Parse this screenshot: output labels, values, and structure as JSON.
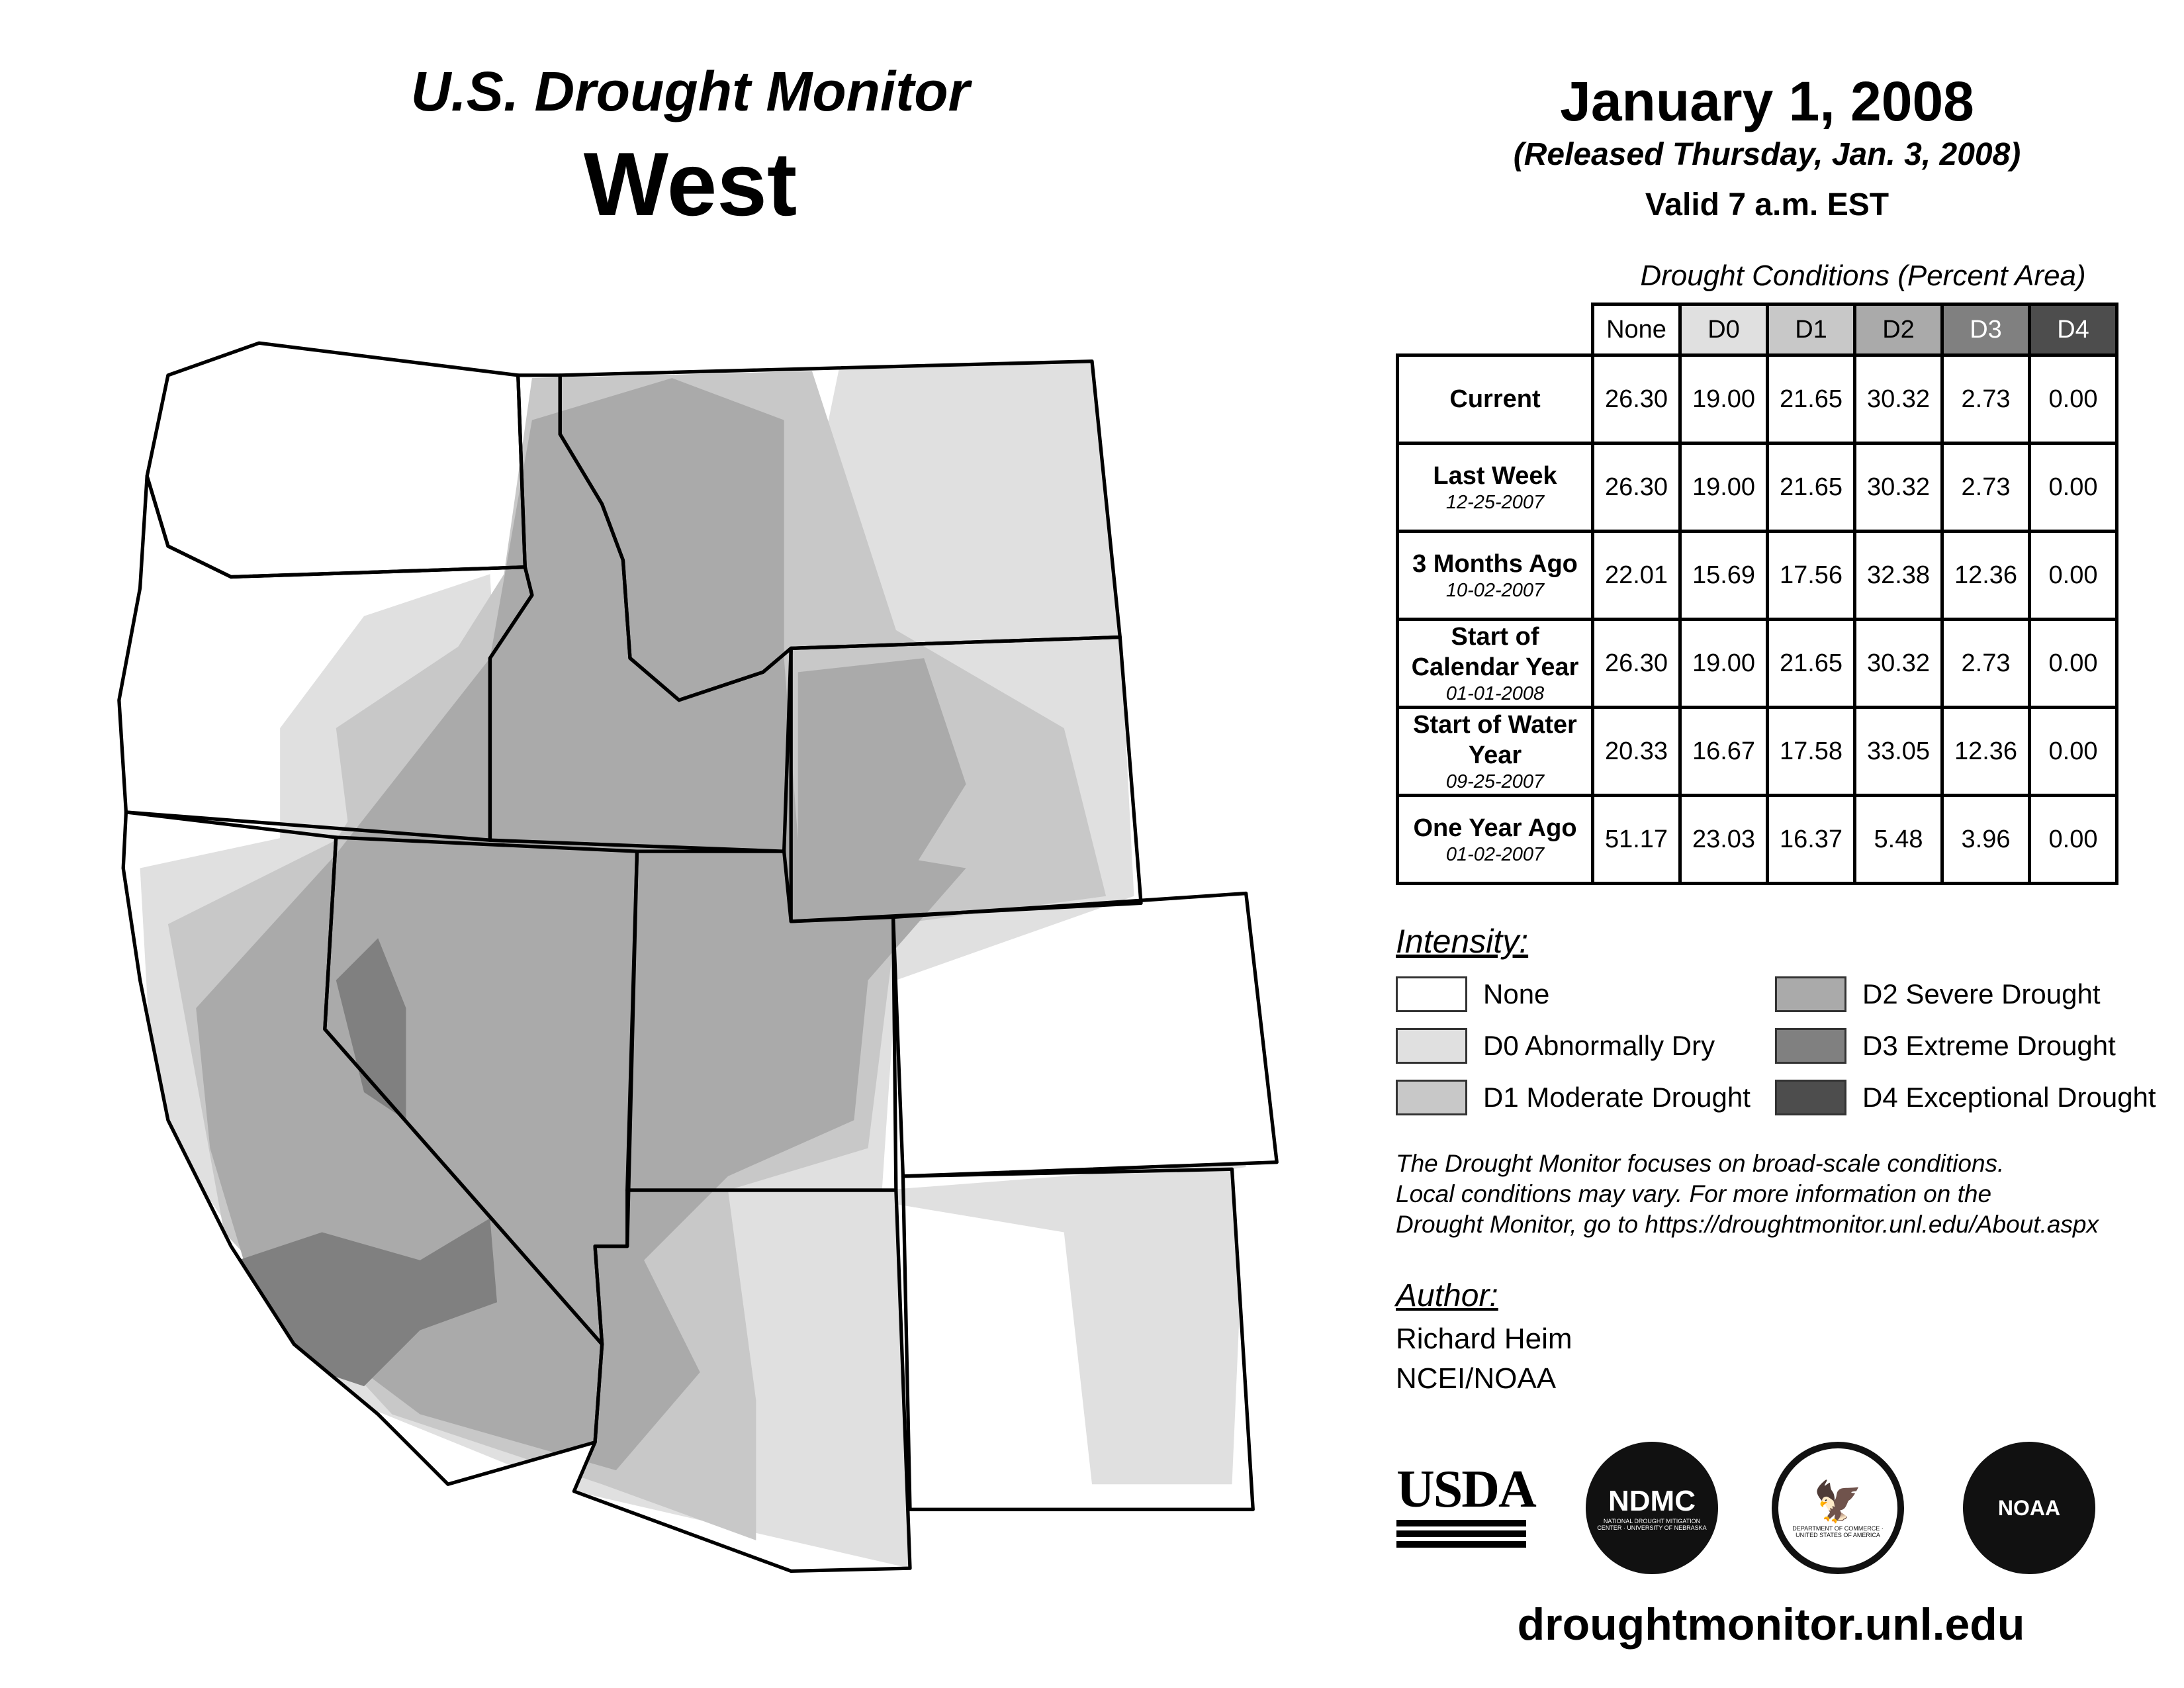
{
  "header": {
    "product": "U.S. Drought Monitor",
    "region": "West",
    "date": "January 1, 2008",
    "released": "(Released Thursday, Jan. 3, 2008)",
    "valid": "Valid 7 a.m. EST"
  },
  "table": {
    "caption": "Drought Conditions (Percent Area)",
    "columns": [
      "None",
      "D0",
      "D1",
      "D2",
      "D3",
      "D4"
    ],
    "rows": [
      {
        "label": "Current",
        "date": "",
        "values": [
          "26.30",
          "19.00",
          "21.65",
          "30.32",
          "2.73",
          "0.00"
        ]
      },
      {
        "label": "Last Week",
        "date": "12-25-2007",
        "values": [
          "26.30",
          "19.00",
          "21.65",
          "30.32",
          "2.73",
          "0.00"
        ]
      },
      {
        "label": "3 Months Ago",
        "date": "10-02-2007",
        "values": [
          "22.01",
          "15.69",
          "17.56",
          "32.38",
          "12.36",
          "0.00"
        ]
      },
      {
        "label": "Start of Calendar Year",
        "date": "01-01-2008",
        "values": [
          "26.30",
          "19.00",
          "21.65",
          "30.32",
          "2.73",
          "0.00"
        ]
      },
      {
        "label": "Start of Water Year",
        "date": "09-25-2007",
        "values": [
          "20.33",
          "16.67",
          "17.58",
          "33.05",
          "12.36",
          "0.00"
        ]
      },
      {
        "label": "One Year Ago",
        "date": "01-02-2007",
        "values": [
          "51.17",
          "23.03",
          "16.37",
          "5.48",
          "3.96",
          "0.00"
        ]
      }
    ]
  },
  "legend": {
    "title": "Intensity:",
    "items": [
      {
        "label": "None",
        "color": "#ffffff"
      },
      {
        "label": "D0 Abnormally Dry",
        "color": "#e0e0e0"
      },
      {
        "label": "D1 Moderate Drought",
        "color": "#c8c8c8"
      },
      {
        "label": "D2 Severe Drought",
        "color": "#aaaaaa"
      },
      {
        "label": "D3 Extreme Drought",
        "color": "#808080"
      },
      {
        "label": "D4 Exceptional Drought",
        "color": "#4d4d4d"
      }
    ]
  },
  "note": [
    "The Drought Monitor focuses on broad-scale conditions.",
    "Local conditions may vary. For more information on the",
    "Drought Monitor, go to https://droughtmonitor.unl.edu/About.aspx"
  ],
  "author": {
    "heading": "Author:",
    "name": "Richard Heim",
    "org": "NCEI/NOAA"
  },
  "logos": {
    "usda": "USDA",
    "ndmc": "NDMC",
    "ndmc_ring": "NATIONAL DROUGHT MITIGATION CENTER · UNIVERSITY OF NEBRASKA",
    "doc_ring": "DEPARTMENT OF COMMERCE · UNITED STATES OF AMERICA",
    "noaa": "NOAA"
  },
  "footer_url": "droughtmonitor.unl.edu"
}
